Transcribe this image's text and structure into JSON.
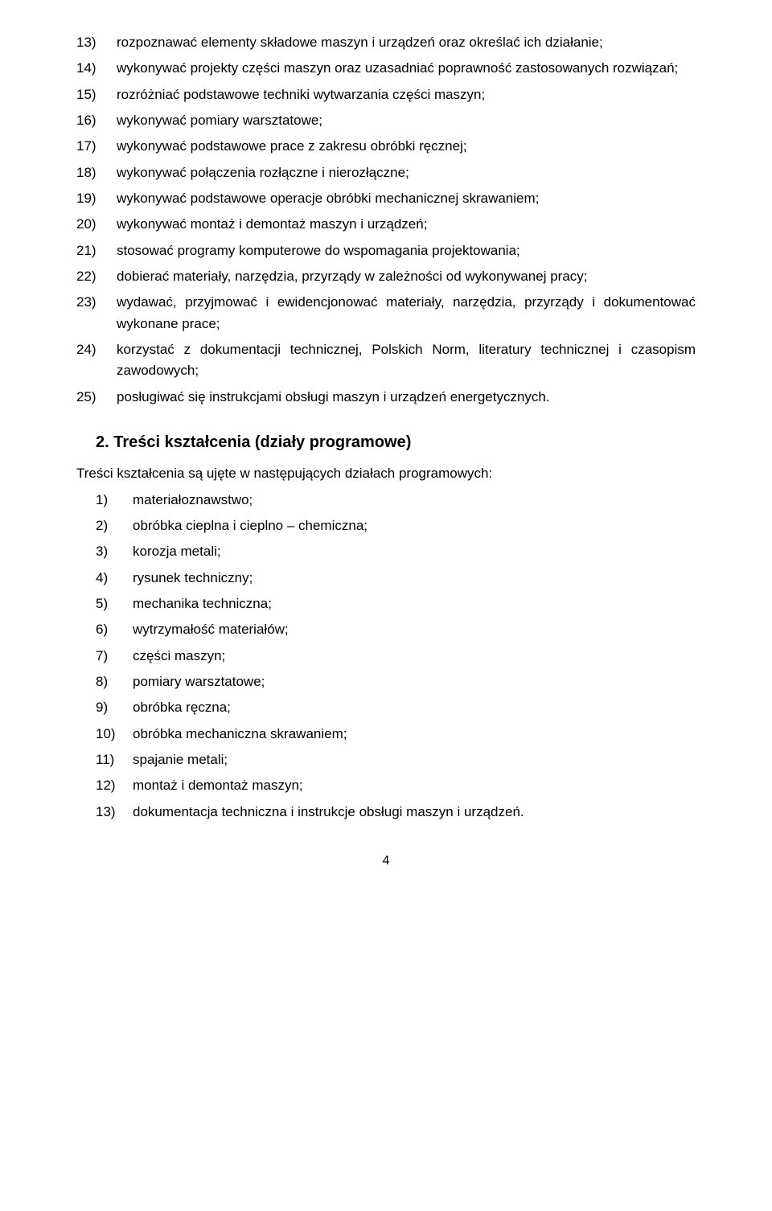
{
  "list1": [
    {
      "num": "13)",
      "text": "rozpoznawać elementy składowe maszyn i urządzeń oraz określać ich działanie;"
    },
    {
      "num": "14)",
      "text": "wykonywać projekty części maszyn oraz uzasadniać poprawność zastosowanych rozwiązań;"
    },
    {
      "num": "15)",
      "text": "rozróżniać podstawowe techniki wytwarzania części maszyn;"
    },
    {
      "num": "16)",
      "text": "wykonywać pomiary warsztatowe;"
    },
    {
      "num": "17)",
      "text": "wykonywać podstawowe prace z zakresu obróbki ręcznej;"
    },
    {
      "num": "18)",
      "text": "wykonywać połączenia rozłączne i nierozłączne;"
    },
    {
      "num": "19)",
      "text": "wykonywać podstawowe operacje obróbki mechanicznej skrawaniem;"
    },
    {
      "num": "20)",
      "text": "wykonywać montaż i demontaż maszyn i urządzeń;"
    },
    {
      "num": "21)",
      "text": "stosować programy komputerowe do wspomagania projektowania;"
    },
    {
      "num": "22)",
      "text": "dobierać materiały, narzędzia, przyrządy w zależności od wykonywanej pracy;"
    },
    {
      "num": "23)",
      "text": "wydawać, przyjmować i ewidencjonować materiały, narzędzia, przyrządy i dokumentować wykonane prace;"
    },
    {
      "num": "24)",
      "text": "korzystać z dokumentacji technicznej, Polskich Norm, literatury technicznej i czasopism zawodowych;"
    },
    {
      "num": "25)",
      "text": "posługiwać się instrukcjami obsługi maszyn i urządzeń energetycznych."
    }
  ],
  "section2": {
    "heading": "2. Treści kształcenia (działy programowe)",
    "intro": "Treści kształcenia są ujęte w następujących działach programowych:",
    "items": [
      {
        "num": "1)",
        "text": "materiałoznawstwo;"
      },
      {
        "num": "2)",
        "text": "obróbka cieplna i cieplno – chemiczna;"
      },
      {
        "num": "3)",
        "text": "korozja metali;"
      },
      {
        "num": "4)",
        "text": "rysunek techniczny;"
      },
      {
        "num": "5)",
        "text": "mechanika techniczna;"
      },
      {
        "num": "6)",
        "text": "wytrzymałość materiałów;"
      },
      {
        "num": "7)",
        "text": "części maszyn;"
      },
      {
        "num": "8)",
        "text": "pomiary warsztatowe;"
      },
      {
        "num": "9)",
        "text": "obróbka ręczna;"
      },
      {
        "num": "10)",
        "text": "obróbka mechaniczna skrawaniem;"
      },
      {
        "num": "11)",
        "text": "spajanie metali;"
      },
      {
        "num": "12)",
        "text": "montaż i demontaż maszyn;"
      },
      {
        "num": "13)",
        "text": "dokumentacja  techniczna i instrukcje obsługi maszyn i urządzeń."
      }
    ]
  },
  "pageNumber": "4"
}
